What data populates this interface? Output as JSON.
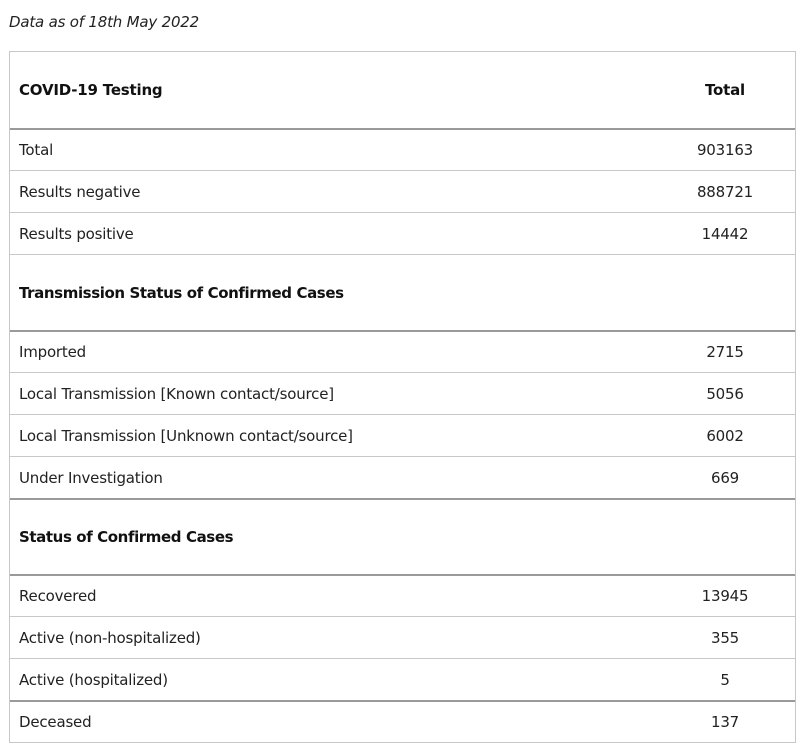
{
  "caption": "Data as of 18th May 2022",
  "table": {
    "header": {
      "label": "COVID-19 Testing",
      "value": "Total"
    },
    "testing_rows": [
      {
        "label": "Total",
        "value": "903163"
      },
      {
        "label": "Results negative",
        "value": "888721"
      },
      {
        "label": "Results positive",
        "value": "14442"
      }
    ],
    "transmission_heading": "Transmission Status of Confirmed Cases",
    "transmission_rows": [
      {
        "label": "Imported",
        "value": "2715"
      },
      {
        "label": "Local Transmission [Known contact/source]",
        "value": "5056"
      },
      {
        "label": "Local Transmission [Unknown contact/source]",
        "value": "6002"
      },
      {
        "label": "Under Investigation",
        "value": "669"
      }
    ],
    "status_heading": "Status of Confirmed Cases",
    "status_rows": [
      {
        "label": "Recovered",
        "value": "13945"
      },
      {
        "label": "Active (non-hospitalized)",
        "value": "355"
      },
      {
        "label": "Active (hospitalized)",
        "value": "5"
      },
      {
        "label": "Deceased",
        "value": "137"
      }
    ]
  }
}
